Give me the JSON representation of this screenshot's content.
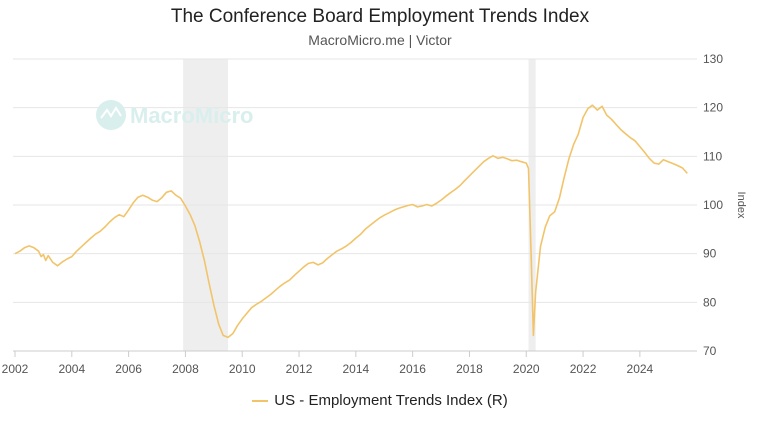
{
  "chart_data": {
    "type": "line",
    "title": "The Conference Board Employment Trends Index",
    "subtitle": "MacroMicro.me | Victor",
    "watermark": "MacroMicro",
    "ylabel": "Index",
    "ylim": [
      70,
      130
    ],
    "yticks": [
      70,
      80,
      90,
      100,
      110,
      120,
      130
    ],
    "xlim": [
      2002,
      2025.8
    ],
    "xticks": [
      2002,
      2004,
      2006,
      2008,
      2010,
      2012,
      2014,
      2016,
      2018,
      2020,
      2022,
      2024
    ],
    "grid": true,
    "legend_position": "bottom-center",
    "recessions": [
      [
        2007.92,
        2009.5
      ],
      [
        2020.08,
        2020.33
      ]
    ],
    "series": [
      {
        "name": "US - Employment Trends Index (R)",
        "color": "#f2c46a",
        "points": [
          [
            2002.0,
            90.0
          ],
          [
            2002.17,
            90.5
          ],
          [
            2002.33,
            91.2
          ],
          [
            2002.5,
            91.6
          ],
          [
            2002.67,
            91.2
          ],
          [
            2002.83,
            90.5
          ],
          [
            2002.92,
            89.4
          ],
          [
            2003.0,
            89.8
          ],
          [
            2003.08,
            88.6
          ],
          [
            2003.17,
            89.6
          ],
          [
            2003.33,
            88.2
          ],
          [
            2003.5,
            87.5
          ],
          [
            2003.67,
            88.3
          ],
          [
            2003.83,
            88.9
          ],
          [
            2004.0,
            89.4
          ],
          [
            2004.17,
            90.5
          ],
          [
            2004.33,
            91.4
          ],
          [
            2004.5,
            92.3
          ],
          [
            2004.67,
            93.2
          ],
          [
            2004.83,
            94.0
          ],
          [
            2005.0,
            94.6
          ],
          [
            2005.17,
            95.5
          ],
          [
            2005.33,
            96.5
          ],
          [
            2005.5,
            97.4
          ],
          [
            2005.67,
            98.0
          ],
          [
            2005.83,
            97.6
          ],
          [
            2006.0,
            99.0
          ],
          [
            2006.17,
            100.5
          ],
          [
            2006.33,
            101.6
          ],
          [
            2006.5,
            102.0
          ],
          [
            2006.67,
            101.6
          ],
          [
            2006.83,
            101.0
          ],
          [
            2007.0,
            100.7
          ],
          [
            2007.17,
            101.5
          ],
          [
            2007.33,
            102.6
          ],
          [
            2007.5,
            102.9
          ],
          [
            2007.67,
            102.0
          ],
          [
            2007.83,
            101.4
          ],
          [
            2008.0,
            99.8
          ],
          [
            2008.17,
            98.0
          ],
          [
            2008.33,
            95.8
          ],
          [
            2008.5,
            92.5
          ],
          [
            2008.67,
            88.5
          ],
          [
            2008.83,
            84.0
          ],
          [
            2009.0,
            79.5
          ],
          [
            2009.17,
            75.5
          ],
          [
            2009.33,
            73.2
          ],
          [
            2009.5,
            72.8
          ],
          [
            2009.67,
            73.6
          ],
          [
            2009.83,
            75.2
          ],
          [
            2010.0,
            76.6
          ],
          [
            2010.17,
            77.8
          ],
          [
            2010.33,
            78.9
          ],
          [
            2010.5,
            79.6
          ],
          [
            2010.67,
            80.2
          ],
          [
            2010.83,
            80.9
          ],
          [
            2011.0,
            81.6
          ],
          [
            2011.17,
            82.5
          ],
          [
            2011.33,
            83.3
          ],
          [
            2011.5,
            84.0
          ],
          [
            2011.67,
            84.6
          ],
          [
            2011.83,
            85.5
          ],
          [
            2012.0,
            86.4
          ],
          [
            2012.17,
            87.3
          ],
          [
            2012.33,
            88.0
          ],
          [
            2012.5,
            88.2
          ],
          [
            2012.67,
            87.7
          ],
          [
            2012.83,
            88.1
          ],
          [
            2013.0,
            89.0
          ],
          [
            2013.17,
            89.8
          ],
          [
            2013.33,
            90.5
          ],
          [
            2013.5,
            91.0
          ],
          [
            2013.67,
            91.6
          ],
          [
            2013.83,
            92.3
          ],
          [
            2014.0,
            93.2
          ],
          [
            2014.17,
            94.0
          ],
          [
            2014.33,
            95.0
          ],
          [
            2014.5,
            95.8
          ],
          [
            2014.67,
            96.6
          ],
          [
            2014.83,
            97.3
          ],
          [
            2015.0,
            97.9
          ],
          [
            2015.17,
            98.4
          ],
          [
            2015.33,
            98.9
          ],
          [
            2015.5,
            99.3
          ],
          [
            2015.67,
            99.6
          ],
          [
            2015.83,
            99.9
          ],
          [
            2016.0,
            100.1
          ],
          [
            2016.17,
            99.6
          ],
          [
            2016.33,
            99.8
          ],
          [
            2016.5,
            100.1
          ],
          [
            2016.67,
            99.8
          ],
          [
            2016.83,
            100.3
          ],
          [
            2017.0,
            101.0
          ],
          [
            2017.17,
            101.8
          ],
          [
            2017.33,
            102.5
          ],
          [
            2017.5,
            103.2
          ],
          [
            2017.67,
            104.0
          ],
          [
            2017.83,
            105.0
          ],
          [
            2018.0,
            106.0
          ],
          [
            2018.17,
            107.0
          ],
          [
            2018.33,
            107.9
          ],
          [
            2018.5,
            108.9
          ],
          [
            2018.67,
            109.6
          ],
          [
            2018.83,
            110.1
          ],
          [
            2019.0,
            109.6
          ],
          [
            2019.17,
            109.8
          ],
          [
            2019.33,
            109.5
          ],
          [
            2019.5,
            109.1
          ],
          [
            2019.67,
            109.2
          ],
          [
            2019.83,
            108.9
          ],
          [
            2020.0,
            108.6
          ],
          [
            2020.08,
            107.5
          ],
          [
            2020.17,
            90.0
          ],
          [
            2020.25,
            73.2
          ],
          [
            2020.33,
            82.0
          ],
          [
            2020.5,
            91.5
          ],
          [
            2020.67,
            95.5
          ],
          [
            2020.83,
            97.8
          ],
          [
            2021.0,
            98.6
          ],
          [
            2021.17,
            101.5
          ],
          [
            2021.33,
            105.5
          ],
          [
            2021.5,
            109.5
          ],
          [
            2021.67,
            112.5
          ],
          [
            2021.83,
            114.5
          ],
          [
            2022.0,
            118.0
          ],
          [
            2022.17,
            119.8
          ],
          [
            2022.33,
            120.5
          ],
          [
            2022.5,
            119.5
          ],
          [
            2022.67,
            120.3
          ],
          [
            2022.83,
            118.5
          ],
          [
            2023.0,
            117.6
          ],
          [
            2023.17,
            116.5
          ],
          [
            2023.33,
            115.5
          ],
          [
            2023.5,
            114.6
          ],
          [
            2023.67,
            113.8
          ],
          [
            2023.83,
            113.2
          ],
          [
            2024.0,
            112.0
          ],
          [
            2024.17,
            110.8
          ],
          [
            2024.33,
            109.6
          ],
          [
            2024.5,
            108.6
          ],
          [
            2024.67,
            108.4
          ],
          [
            2024.83,
            109.3
          ],
          [
            2025.0,
            108.9
          ],
          [
            2025.17,
            108.5
          ],
          [
            2025.33,
            108.1
          ],
          [
            2025.5,
            107.6
          ],
          [
            2025.67,
            106.5
          ]
        ]
      }
    ]
  }
}
